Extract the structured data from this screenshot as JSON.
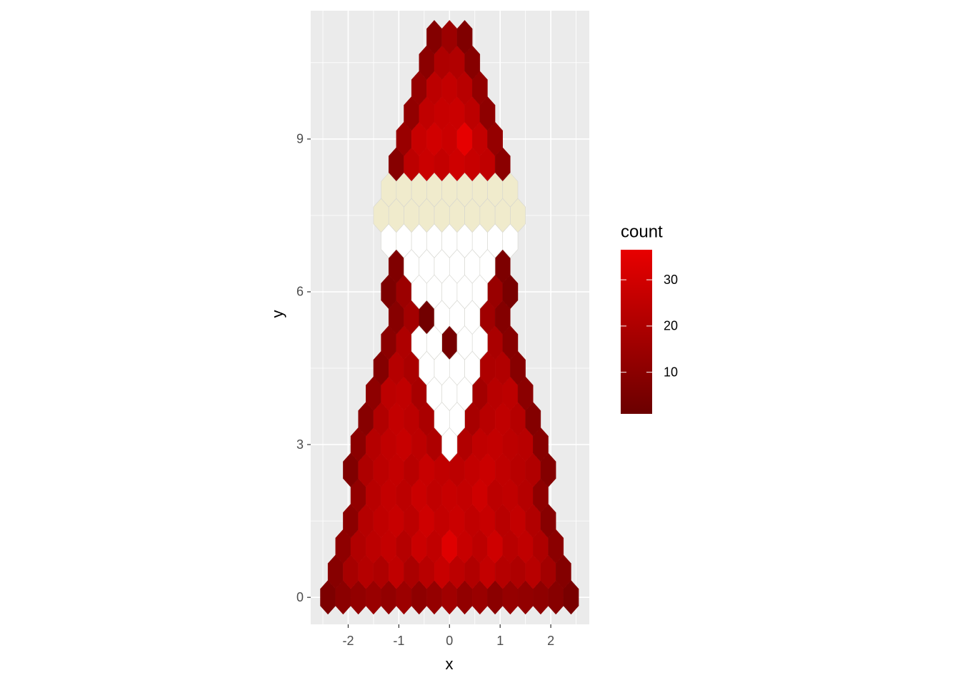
{
  "chart_data": {
    "type": "hexbin",
    "x_label": "x",
    "y_label": "y",
    "xlim": [
      -2.74,
      2.76
    ],
    "ylim": [
      -0.53,
      11.52
    ],
    "xticks": [
      -2,
      -1,
      0,
      1,
      2
    ],
    "yticks": [
      0,
      3,
      6,
      9
    ],
    "grid": true,
    "binwidth": [
      0.3,
      0.5
    ],
    "colorbar": {
      "title": "count",
      "limits": [
        1,
        36.5
      ],
      "ticks": [
        10,
        20,
        30
      ],
      "low": "#6b0000",
      "high": "#e80000"
    },
    "series": [
      {
        "x": [
          -2.4,
          -2.1,
          -1.8,
          -1.5,
          -1.2,
          -0.9,
          -0.6,
          -0.3,
          0,
          0.3,
          0.6,
          0.9,
          1.2,
          1.5,
          1.8,
          2.1,
          2.4,
          -2.25,
          -1.95,
          -1.65,
          -1.35,
          -1.05,
          -0.75,
          -0.45,
          -0.15,
          0.15,
          0.45,
          0.75,
          1.05,
          1.35,
          1.65,
          1.95,
          2.25,
          -2.1,
          -1.8,
          -1.5,
          -1.2,
          -0.9,
          -0.6,
          -0.3,
          0,
          0.3,
          0.6,
          0.9,
          1.2,
          1.5,
          1.8,
          2.1,
          -1.95,
          -1.65,
          -1.35,
          -1.05,
          -0.75,
          -0.45,
          -0.15,
          0.15,
          0.45,
          0.75,
          1.05,
          1.35,
          1.65,
          1.95,
          -1.8,
          -1.5,
          -1.2,
          -0.9,
          -0.6,
          -0.3,
          0,
          0.3,
          0.6,
          0.9,
          1.2,
          1.5,
          1.8,
          -1.95,
          -1.65,
          -1.35,
          -1.05,
          -0.75,
          -0.45,
          -0.15,
          0.15,
          0.45,
          0.75,
          1.05,
          1.35,
          1.65,
          1.95,
          -1.8,
          -1.5,
          -1.2,
          -0.9,
          -0.6,
          -0.3,
          0.3,
          0.6,
          0.9,
          1.2,
          1.5,
          1.8,
          -1.65,
          -1.35,
          -1.05,
          -0.75,
          -0.45,
          0.45,
          0.75,
          1.05,
          1.35,
          1.65,
          -1.5,
          -1.2,
          -0.9,
          -0.6,
          0.6,
          0.9,
          1.2,
          1.5,
          -1.35,
          -1.05,
          -0.75,
          0.75,
          1.05,
          1.35,
          -1.2,
          -0.9,
          0,
          0.9,
          1.2,
          -1.05,
          -0.75,
          -0.45,
          0.75,
          1.05,
          -1.2,
          -0.9,
          0.9,
          1.2,
          -1.05,
          1.05,
          -1.05,
          -0.75,
          -0.45,
          -0.15,
          0.15,
          0.45,
          0.75,
          1.05,
          -0.9,
          -0.6,
          -0.3,
          0,
          0.3,
          0.6,
          0.9,
          -0.75,
          -0.45,
          -0.15,
          0.15,
          0.45,
          0.75,
          -0.6,
          -0.3,
          0,
          0.3,
          0.6,
          -0.45,
          -0.15,
          0.15,
          0.45,
          -0.3,
          0,
          0.3
        ],
        "y": [
          0,
          0,
          0,
          0,
          0,
          0,
          0,
          0,
          0,
          0,
          0,
          0,
          0,
          0,
          0,
          0,
          0,
          0.5,
          0.5,
          0.5,
          0.5,
          0.5,
          0.5,
          0.5,
          0.5,
          0.5,
          0.5,
          0.5,
          0.5,
          0.5,
          0.5,
          0.5,
          0.5,
          1,
          1,
          1,
          1,
          1,
          1,
          1,
          1,
          1,
          1,
          1,
          1,
          1,
          1,
          1,
          1.5,
          1.5,
          1.5,
          1.5,
          1.5,
          1.5,
          1.5,
          1.5,
          1.5,
          1.5,
          1.5,
          1.5,
          1.5,
          1.5,
          2,
          2,
          2,
          2,
          2,
          2,
          2,
          2,
          2,
          2,
          2,
          2,
          2,
          2.5,
          2.5,
          2.5,
          2.5,
          2.5,
          2.5,
          2.5,
          2.5,
          2.5,
          2.5,
          2.5,
          2.5,
          2.5,
          2.5,
          3,
          3,
          3,
          3,
          3,
          3,
          3,
          3,
          3,
          3,
          3,
          3,
          3.5,
          3.5,
          3.5,
          3.5,
          3.5,
          3.5,
          3.5,
          3.5,
          3.5,
          3.5,
          4,
          4,
          4,
          4,
          4,
          4,
          4,
          4,
          4.5,
          4.5,
          4.5,
          4.5,
          4.5,
          4.5,
          5,
          5,
          5,
          5,
          5,
          5.5,
          5.5,
          5.5,
          5.5,
          5.5,
          6,
          6,
          6,
          6,
          6.5,
          6.5,
          8.5,
          8.5,
          8.5,
          8.5,
          8.5,
          8.5,
          8.5,
          8.5,
          9,
          9,
          9,
          9,
          9,
          9,
          9,
          9.5,
          9.5,
          9.5,
          9.5,
          9.5,
          9.5,
          10,
          10,
          10,
          10,
          10,
          10.5,
          10.5,
          10.5,
          10.5,
          11,
          11,
          11
        ],
        "values": [
          6,
          10,
          12,
          14,
          12,
          15,
          11,
          13,
          16,
          12,
          14,
          10,
          13,
          12,
          11,
          9,
          5,
          9,
          18,
          22,
          20,
          25,
          19,
          23,
          27,
          24,
          21,
          26,
          22,
          20,
          23,
          17,
          8,
          11,
          21,
          24,
          26,
          22,
          28,
          25,
          34,
          27,
          24,
          29,
          23,
          25,
          20,
          10,
          10,
          22,
          25,
          27,
          24,
          29,
          26,
          28,
          25,
          27,
          23,
          26,
          21,
          9,
          12,
          23,
          26,
          24,
          28,
          25,
          27,
          26,
          29,
          24,
          25,
          22,
          11,
          7,
          20,
          24,
          26,
          23,
          27,
          25,
          24,
          26,
          28,
          25,
          23,
          21,
          8,
          10,
          22,
          25,
          27,
          24,
          20,
          21,
          25,
          26,
          24,
          23,
          9,
          9,
          21,
          26,
          24,
          19,
          18,
          23,
          25,
          22,
          8,
          11,
          24,
          25,
          18,
          17,
          23,
          24,
          10,
          8,
          22,
          19,
          20,
          21,
          9,
          10,
          20,
          4,
          19,
          9,
          9,
          17,
          3,
          16,
          8,
          6,
          15,
          14,
          5,
          7,
          6,
          9,
          24,
          28,
          26,
          29,
          27,
          25,
          10,
          14,
          27,
          30,
          28,
          36,
          26,
          13,
          12,
          25,
          27,
          28,
          24,
          11,
          13,
          24,
          26,
          23,
          12,
          10,
          20,
          21,
          9,
          8,
          15,
          7
        ]
      },
      {
        "color": "#ffffff",
        "x": [
          0,
          -0.15,
          0.15,
          -0.3,
          0,
          0.3,
          -0.45,
          -0.15,
          0.15,
          0.45,
          -0.6,
          -0.3,
          0.3,
          0.6,
          -0.15,
          0.15,
          0.45,
          -0.6,
          -0.3,
          0,
          0.3,
          0.6,
          -0.75,
          -0.45,
          -0.15,
          0.15,
          0.45,
          0.75,
          -1.2,
          -0.9,
          -0.6,
          -0.3,
          0,
          0.3,
          0.6,
          0.9,
          1.2
        ],
        "y": [
          3,
          3.5,
          3.5,
          4,
          4,
          4,
          4.5,
          4.5,
          4.5,
          4.5,
          5,
          5,
          5,
          5,
          5.5,
          5.5,
          5.5,
          6,
          6,
          6,
          6,
          6,
          6.5,
          6.5,
          6.5,
          6.5,
          6.5,
          6.5,
          7,
          7,
          7,
          7,
          7,
          7,
          7,
          7,
          7
        ]
      },
      {
        "color": "#f0ebcc",
        "x": [
          -1.35,
          -1.05,
          -0.75,
          -0.45,
          -0.15,
          0.15,
          0.45,
          0.75,
          1.05,
          1.35,
          -1.2,
          -0.9,
          -0.6,
          -0.3,
          0,
          0.3,
          0.6,
          0.9,
          1.2
        ],
        "y": [
          7.5,
          7.5,
          7.5,
          7.5,
          7.5,
          7.5,
          7.5,
          7.5,
          7.5,
          7.5,
          8,
          8,
          8,
          8,
          8,
          8,
          8,
          8,
          8
        ]
      }
    ]
  }
}
